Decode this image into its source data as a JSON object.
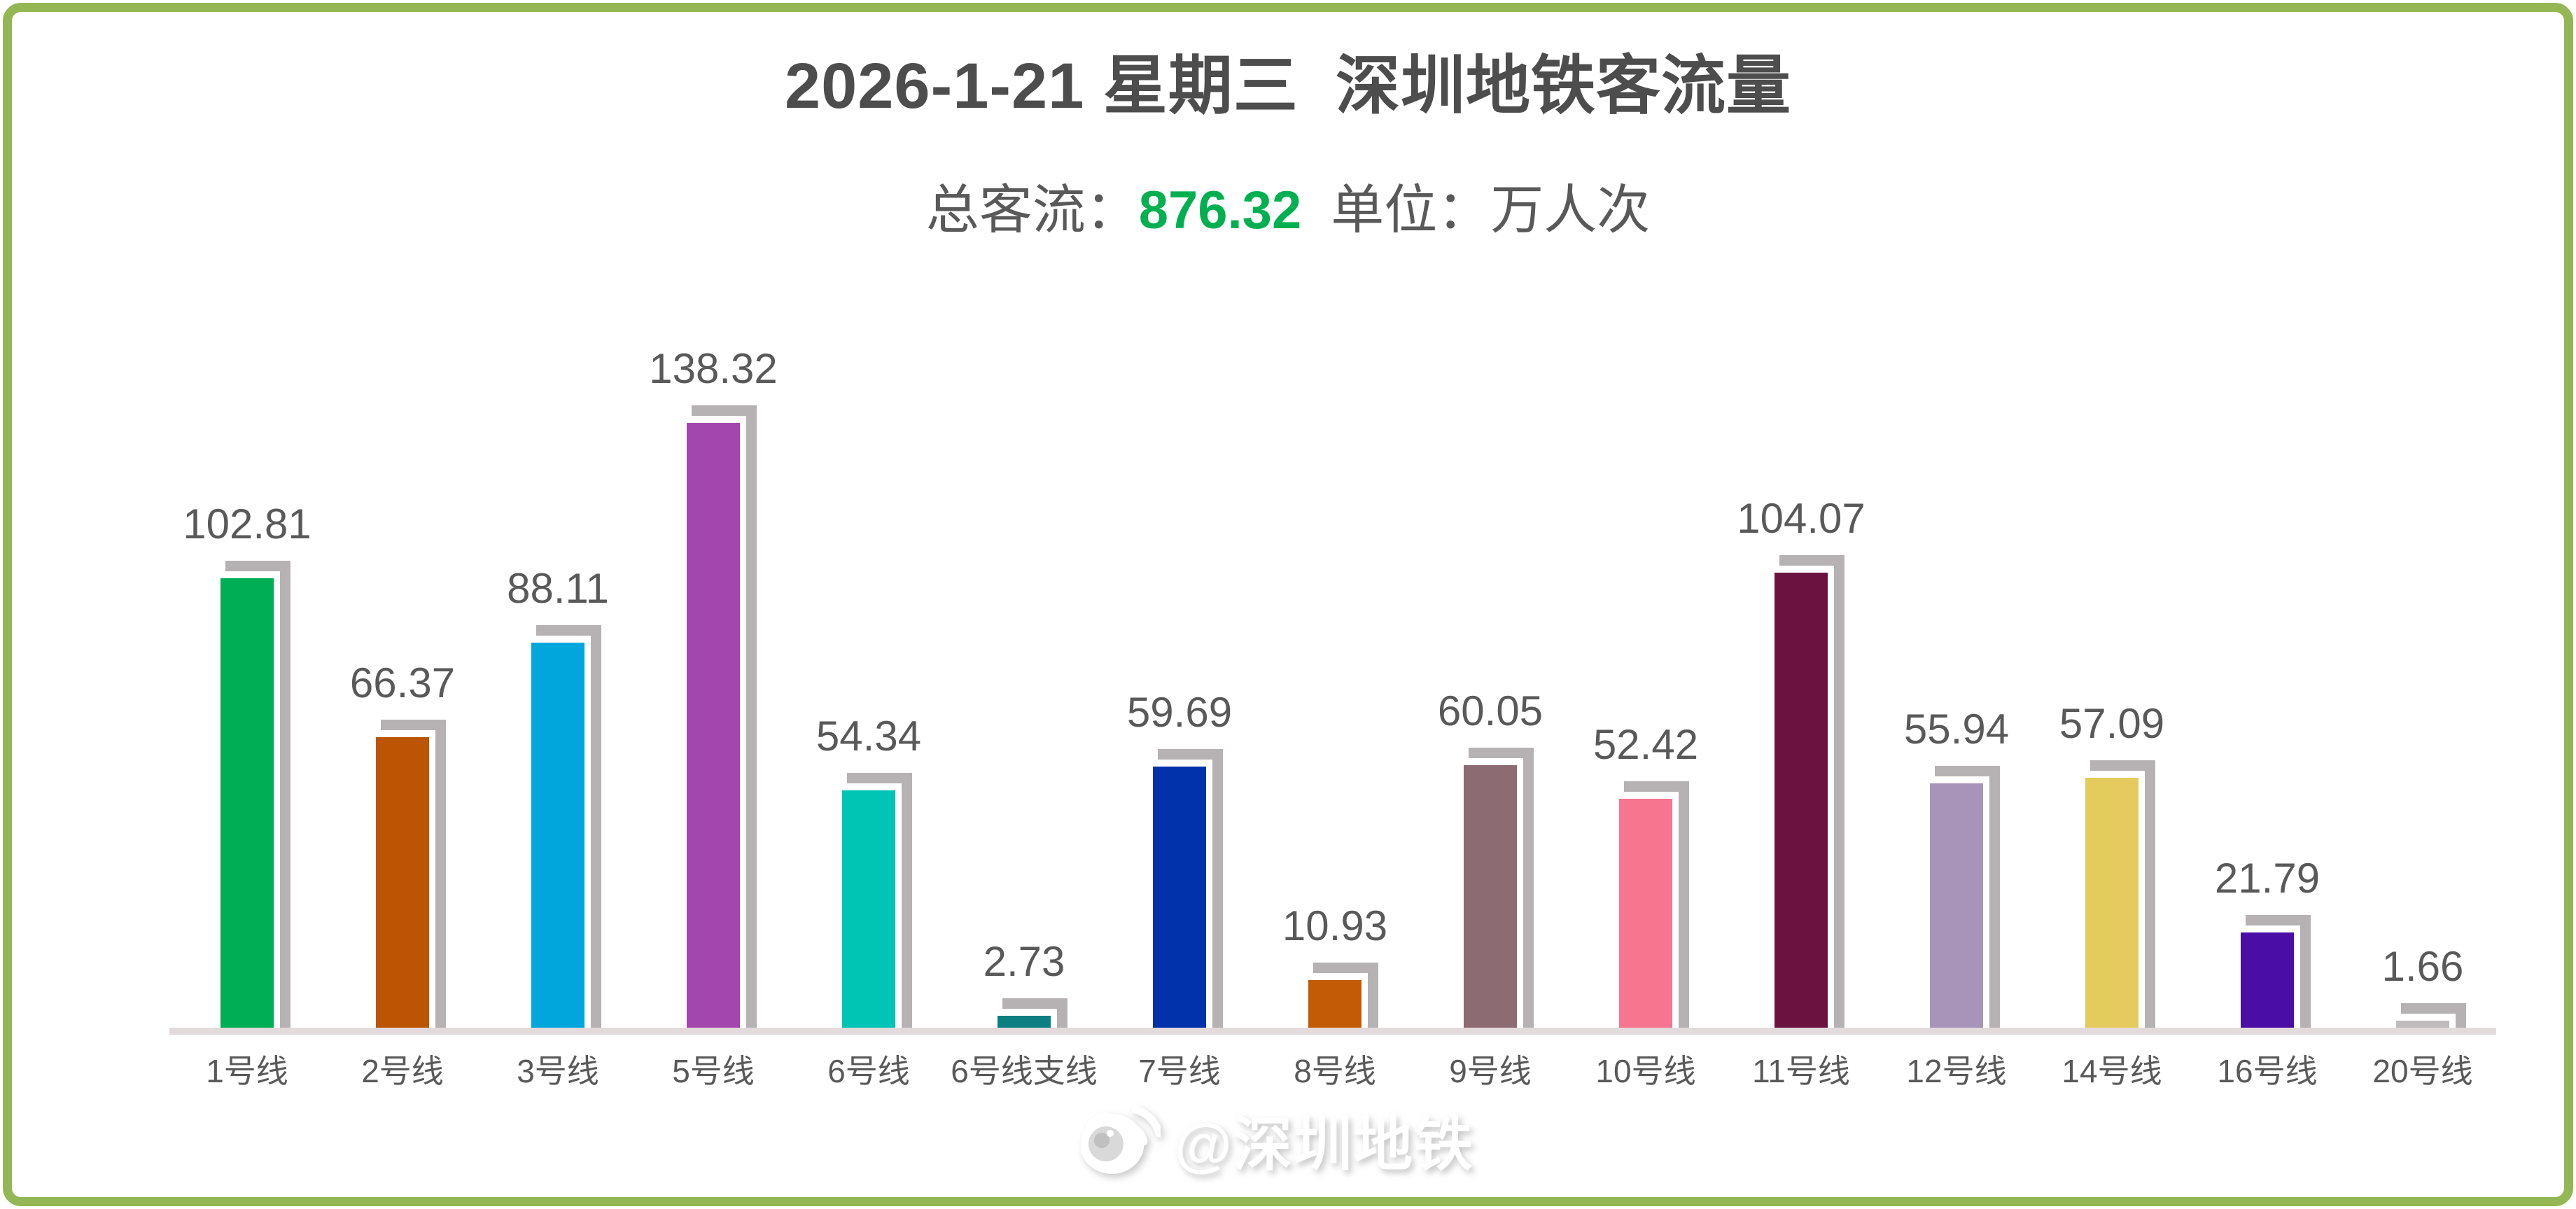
{
  "header": {
    "title": "2026-1-21 星期三  深圳地铁客流量",
    "subtitle_prefix": "总客流：",
    "total_value": "876.32",
    "subtitle_unit": "单位：万人次"
  },
  "watermark": {
    "icon": "weibo-icon",
    "text": "@深圳地铁"
  },
  "colors": {
    "frame_green": "#93B755",
    "title_gray": "#4D4D4D",
    "text_gray": "#595959",
    "total_green": "#00B050",
    "bar_shadow_gray": "#B6B2B3",
    "axis_band": "#E3DADC"
  },
  "chart_data": {
    "type": "bar",
    "title": "2026-1-21 星期三 深圳地铁客流量",
    "subtitle": "总客流：876.32 单位：万人次",
    "total": 876.32,
    "unit": "万人次",
    "categories": [
      "1号线",
      "2号线",
      "3号线",
      "5号线",
      "6号线",
      "6号线支线",
      "7号线",
      "8号线",
      "9号线",
      "10号线",
      "11号线",
      "12号线",
      "14号线",
      "16号线",
      "20号线"
    ],
    "values": [
      102.81,
      66.37,
      88.11,
      138.32,
      54.34,
      2.73,
      59.69,
      10.93,
      60.05,
      52.42,
      104.07,
      55.94,
      57.09,
      21.79,
      1.66
    ],
    "bar_colors": [
      "#00AE55",
      "#BB5504",
      "#00A6DC",
      "#A347AE",
      "#00C4B4",
      "#0B7F82",
      "#0231AC",
      "#C25B06",
      "#8C6B72",
      "#F7758F",
      "#6B1240",
      "#A794B8",
      "#E5CB5E",
      "#4A0EA6",
      "#BFBCBD"
    ],
    "ylim": [
      0,
      140
    ],
    "value_labels_shown": true,
    "grid": false,
    "legend_position": "none",
    "bar_shadow_style": "offset-top-right"
  }
}
